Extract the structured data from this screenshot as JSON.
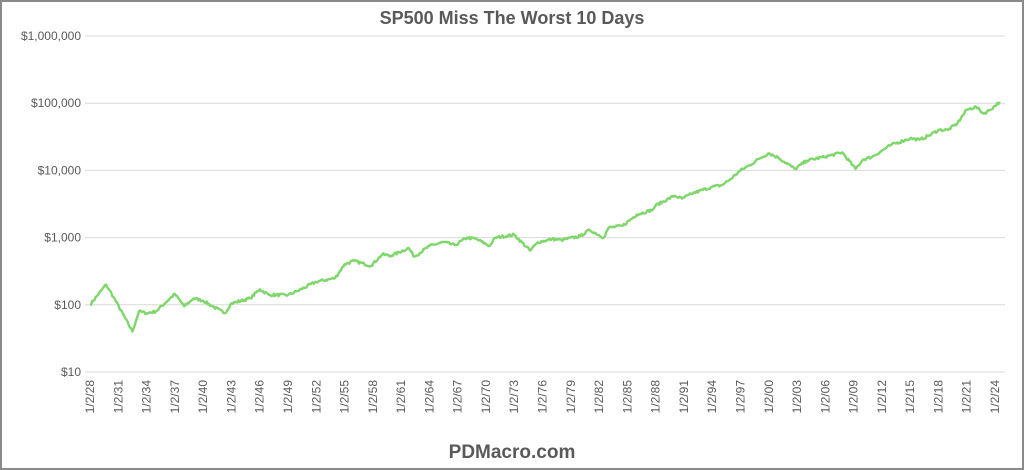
{
  "chart_data": {
    "type": "line",
    "title": "SP500 Miss The Worst 10 Days",
    "footer": "PDMacro.com",
    "xlabel": "",
    "ylabel": "",
    "yscale": "log",
    "ylim": [
      10,
      1000000
    ],
    "y_ticks": [
      "$10",
      "$100",
      "$1,000",
      "$10,000",
      "$100,000",
      "$1,000,000"
    ],
    "y_tick_values": [
      10,
      100,
      1000,
      10000,
      100000,
      1000000
    ],
    "x_ticks": [
      "1/2/28",
      "1/2/31",
      "1/2/34",
      "1/2/37",
      "1/2/40",
      "1/2/43",
      "1/2/46",
      "1/2/49",
      "1/2/52",
      "1/2/55",
      "1/2/58",
      "1/2/61",
      "1/2/64",
      "1/2/67",
      "1/2/70",
      "1/2/73",
      "1/2/76",
      "1/2/79",
      "1/2/82",
      "1/2/85",
      "1/2/88",
      "1/2/91",
      "1/2/94",
      "1/2/97",
      "1/2/00",
      "1/2/03",
      "1/2/06",
      "1/2/09",
      "1/2/12",
      "1/2/15",
      "1/2/18",
      "1/2/21",
      "1/2/24"
    ],
    "xlim": [
      1928,
      2024.5
    ],
    "grid": true,
    "legend": "none",
    "color": "#7fd66b",
    "series": [
      {
        "name": "SP500 Miss The Worst 10 Days",
        "x": [
          1928,
          1929.7,
          1930.5,
          1932.5,
          1933.2,
          1934,
          1935,
          1937,
          1938,
          1939,
          1940,
          1941,
          1942.3,
          1943,
          1945,
          1946,
          1947,
          1949,
          1950,
          1952,
          1954,
          1955,
          1956,
          1957.8,
          1959,
          1960,
          1961.8,
          1962.4,
          1964,
          1965.5,
          1966.7,
          1968,
          1969,
          1970.4,
          1971,
          1973,
          1974.7,
          1975.5,
          1977,
          1978,
          1980,
          1981,
          1982.5,
          1983,
          1984.5,
          1986,
          1987.7,
          1988,
          1990,
          1990.8,
          1992,
          1994,
          1995,
          1996,
          1997,
          1998,
          1999,
          2000,
          2001,
          2002.8,
          2004,
          2006,
          2007.8,
          2009.2,
          2010,
          2011,
          2013,
          2015,
          2016,
          2017,
          2018,
          2019,
          2020,
          2021,
          2022,
          2022.8,
          2023.5,
          2024.5
        ],
        "values": [
          100,
          200,
          130,
          40,
          80,
          75,
          80,
          145,
          95,
          125,
          115,
          95,
          75,
          105,
          125,
          170,
          140,
          140,
          160,
          220,
          250,
          400,
          450,
          380,
          560,
          540,
          700,
          520,
          750,
          860,
          770,
          1000,
          950,
          750,
          1000,
          1100,
          640,
          850,
          950,
          920,
          1050,
          1300,
          1000,
          1400,
          1500,
          2200,
          2600,
          3000,
          4200,
          3800,
          4600,
          5700,
          6000,
          7500,
          10000,
          12000,
          15000,
          18000,
          15500,
          10500,
          14000,
          16000,
          18500,
          10500,
          14500,
          16000,
          24000,
          30000,
          28500,
          33000,
          40000,
          40000,
          50000,
          80000,
          88000,
          70000,
          80000,
          105000
        ]
      }
    ]
  }
}
